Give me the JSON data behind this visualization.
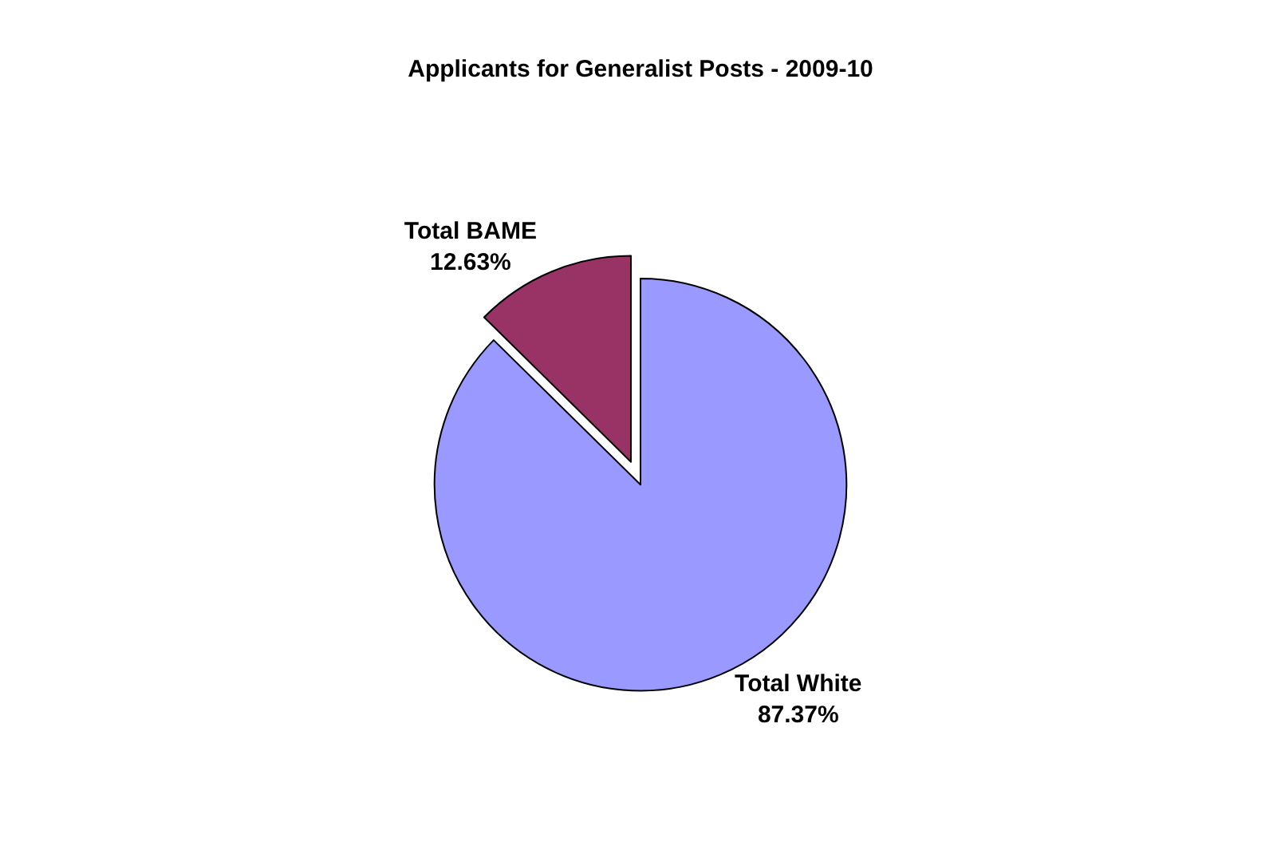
{
  "chart_data": {
    "type": "pie",
    "title": "Applicants for Generalist Posts - 2009-10",
    "categories": [
      "Total BAME",
      "Total White"
    ],
    "values": [
      12.63,
      87.37
    ],
    "colors": [
      "#993366",
      "#9999ff"
    ],
    "value_labels": [
      "12.63%",
      "87.37%"
    ],
    "legend": false
  }
}
